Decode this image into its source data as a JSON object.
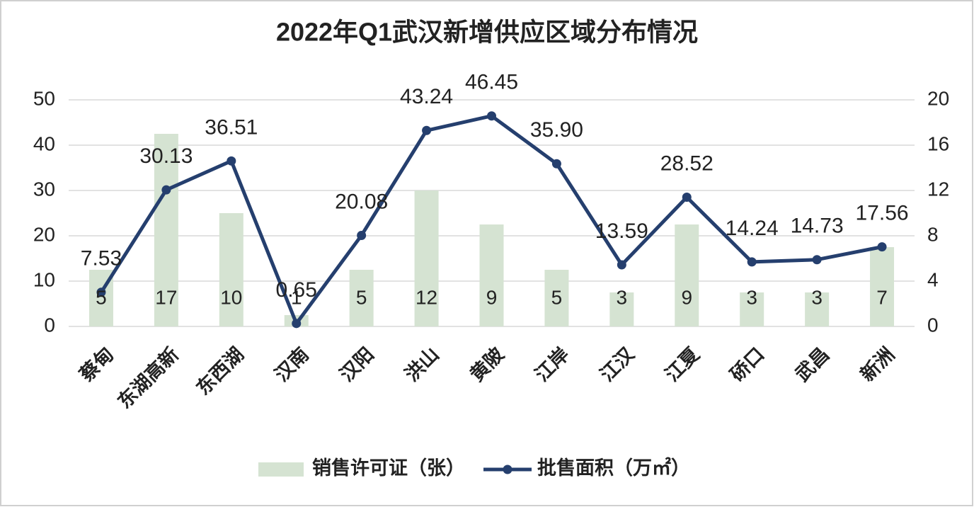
{
  "chart_data": {
    "type": "combo",
    "title": "2022年Q1武汉新增供应区域分布情况",
    "categories": [
      "蔡甸",
      "东湖高新",
      "东西湖",
      "汉南",
      "汉阳",
      "洪山",
      "黄陂",
      "江岸",
      "江汉",
      "江夏",
      "硚口",
      "武昌",
      "新洲"
    ],
    "series": [
      {
        "name": "销售许可证（张）",
        "type": "bar",
        "axis": "y2",
        "color": "#d5e3d2",
        "values": [
          5,
          17,
          10,
          1,
          5,
          12,
          9,
          5,
          3,
          9,
          3,
          3,
          7
        ]
      },
      {
        "name": "批售面积（万㎡）",
        "type": "line",
        "color": "#253f6e",
        "values": [
          7.53,
          30.13,
          36.51,
          0.65,
          20.08,
          43.24,
          46.45,
          35.9,
          13.59,
          28.52,
          14.24,
          14.73,
          17.56
        ],
        "value_labels": [
          "7.53",
          "30.13",
          "36.51",
          "0.65",
          "20.08",
          "43.24",
          "46.45",
          "35.90",
          "13.59",
          "28.52",
          "14.24",
          "14.73",
          "17.56"
        ]
      }
    ],
    "ylim": [
      0,
      50
    ],
    "yticks": [
      0,
      10,
      20,
      30,
      40,
      50
    ],
    "y2lim": [
      0,
      20
    ],
    "y2ticks": [
      0,
      4,
      8,
      12,
      16,
      20
    ],
    "grid": true,
    "legend": "bottom"
  }
}
